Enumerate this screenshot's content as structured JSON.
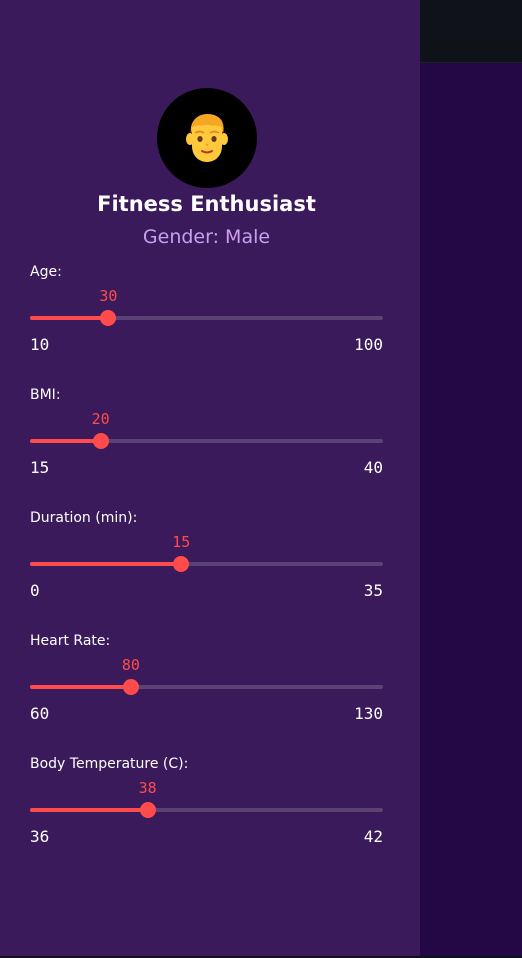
{
  "profile": {
    "title": "Fitness Enthusiast",
    "subtitle": "Gender: Male",
    "avatar_icon": "man-face-icon"
  },
  "colors": {
    "sidebar_bg": "#3a1a5a",
    "main_bg": "#240845",
    "header_bg": "#0f1218",
    "accent": "#ff4b4b",
    "subtitle": "#c9a0f0",
    "track": "#5a4275"
  },
  "sliders": [
    {
      "label": "Age:",
      "value": 30,
      "min": 10,
      "max": 100
    },
    {
      "label": "BMI:",
      "value": 20,
      "min": 15,
      "max": 40
    },
    {
      "label": "Duration (min):",
      "value": 15,
      "min": 0,
      "max": 35
    },
    {
      "label": "Heart Rate:",
      "value": 80,
      "min": 60,
      "max": 130
    },
    {
      "label": "Body Temperature (C):",
      "value": 38,
      "min": 36,
      "max": 42
    }
  ]
}
